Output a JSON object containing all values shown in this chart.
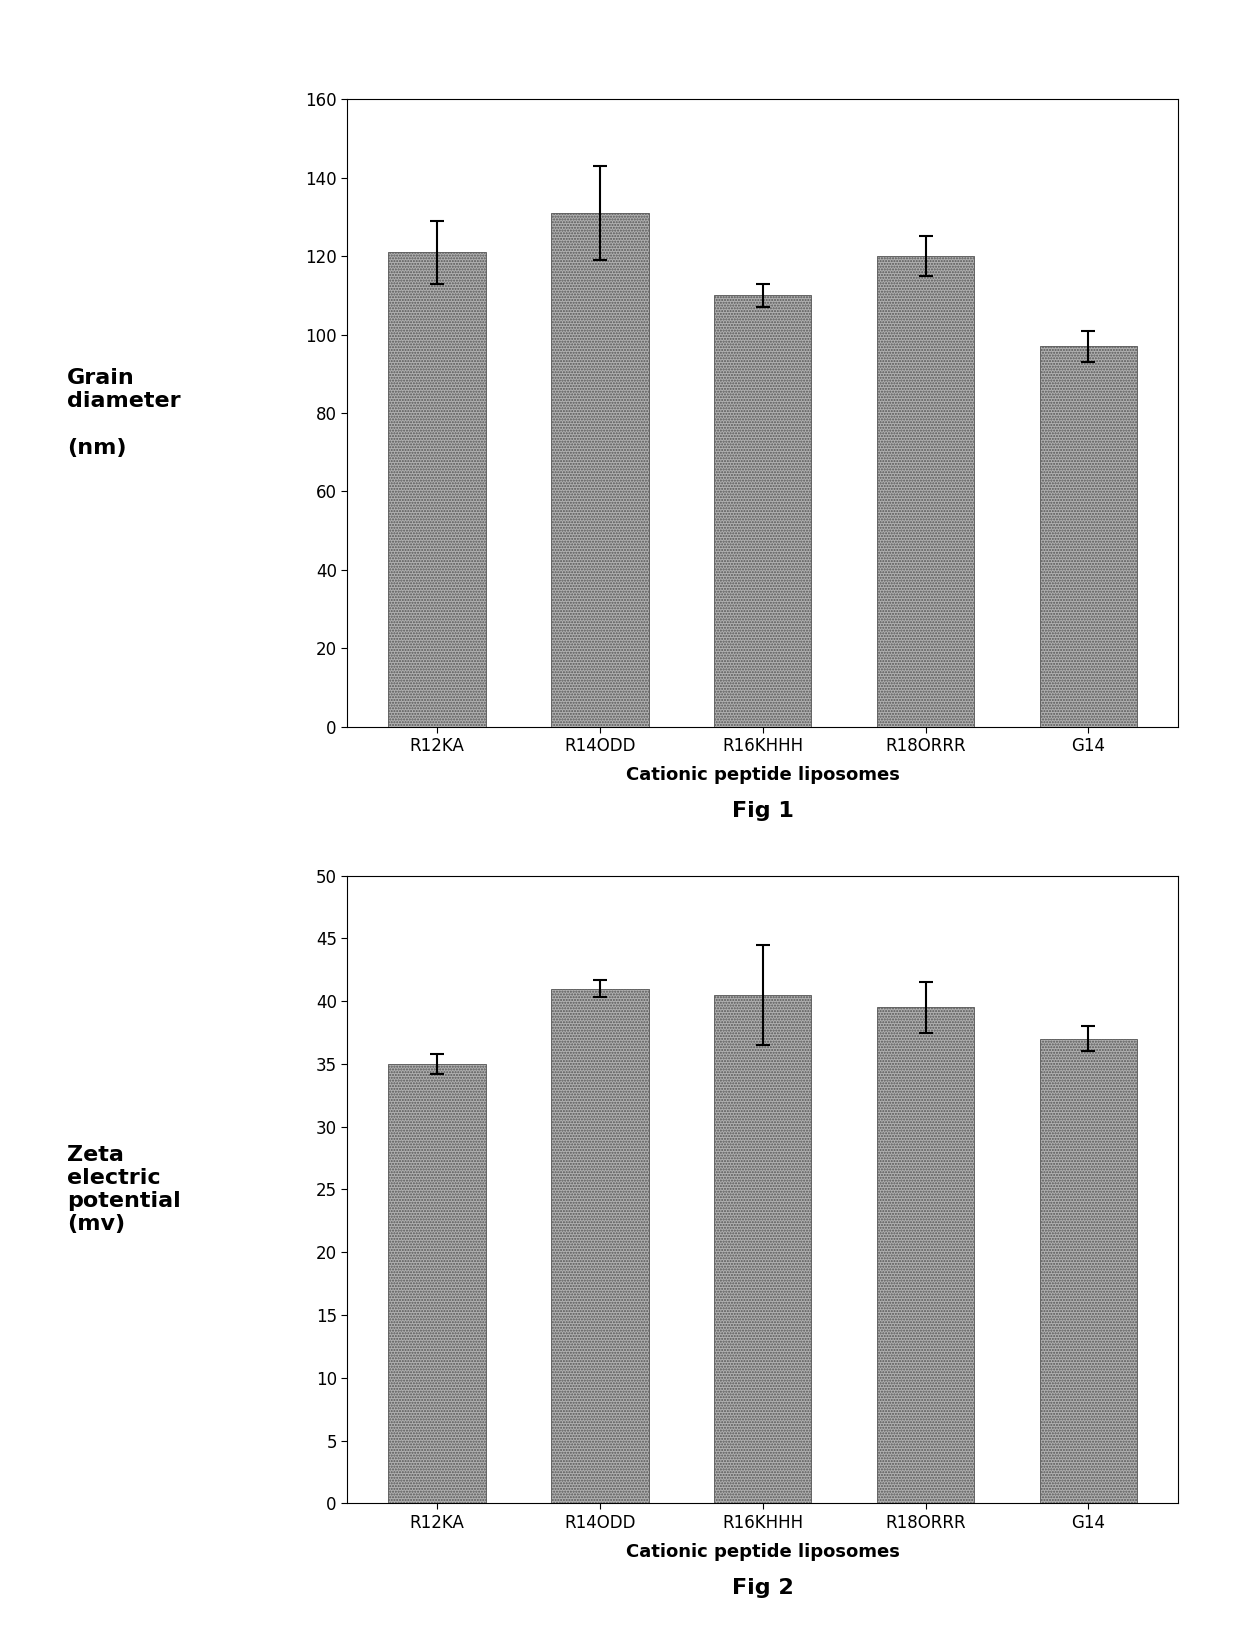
{
  "fig1": {
    "title": "Fig 1",
    "ylabel_lines": [
      "Grain",
      "diameter",
      "",
      "(nm)"
    ],
    "xlabel": "Cationic peptide liposomes",
    "categories": [
      "R12KA",
      "R14ODD",
      "R16KHHH",
      "R18ORRR",
      "G14"
    ],
    "values": [
      121,
      131,
      110,
      120,
      97
    ],
    "errors": [
      8,
      12,
      3,
      5,
      4
    ],
    "ylim": [
      0,
      160
    ],
    "yticks": [
      0,
      20,
      40,
      60,
      80,
      100,
      120,
      140,
      160
    ],
    "bar_color": "#b0b0b0",
    "bar_edgecolor": "#555555"
  },
  "fig2": {
    "title": "Fig 2",
    "ylabel_lines": [
      "Zeta",
      "electric",
      "potential",
      "(mv)"
    ],
    "xlabel": "Cationic peptide liposomes",
    "categories": [
      "R12KA",
      "R14ODD",
      "R16KHHH",
      "R18ORRR",
      "G14"
    ],
    "values": [
      35,
      41,
      40.5,
      39.5,
      37
    ],
    "errors": [
      0.8,
      0.7,
      4,
      2,
      1
    ],
    "ylim": [
      0,
      50
    ],
    "yticks": [
      0,
      5,
      10,
      15,
      20,
      25,
      30,
      35,
      40,
      45,
      50
    ],
    "bar_color": "#b0b0b0",
    "bar_edgecolor": "#555555"
  },
  "background_color": "#ffffff",
  "figure_width": 12.4,
  "figure_height": 16.52,
  "dpi": 100
}
